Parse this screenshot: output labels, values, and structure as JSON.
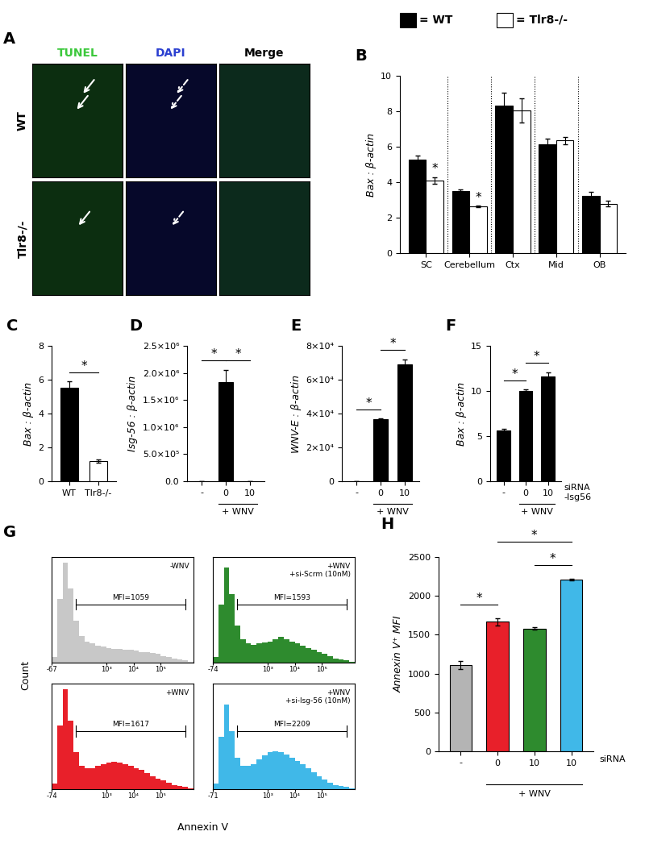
{
  "key": {
    "series": [
      {
        "name": "= WT",
        "color": "#000000"
      },
      {
        "name": "= Tlr8-/-",
        "color": "#ffffff"
      }
    ]
  },
  "chart_data": [
    {
      "type": "image_grid",
      "title": "A",
      "columns": [
        "TUNEL",
        "DAPI",
        "Merge"
      ],
      "colors": [
        "#3cc83c",
        "#2a3fd0",
        "#000000"
      ],
      "rows": [
        "WT",
        "Tlr8-/-"
      ]
    },
    {
      "type": "bar",
      "title": "B",
      "categories": [
        "SC",
        "Cerebellum",
        "Ctx",
        "Mid",
        "OB"
      ],
      "series": [
        {
          "name": "WT",
          "color": "#000000",
          "values": [
            5.3,
            3.5,
            8.35,
            6.15,
            3.25
          ],
          "errors": [
            0.2,
            0.1,
            0.7,
            0.3,
            0.2
          ]
        },
        {
          "name": "Tlr8-/-",
          "color": "#ffffff",
          "values": [
            4.1,
            2.65,
            8.05,
            6.35,
            2.8
          ],
          "errors": [
            0.2,
            0.05,
            0.7,
            0.2,
            0.15
          ]
        }
      ],
      "y_label": "Bax : β-actin",
      "ylim": [
        0,
        10
      ],
      "yticks": [
        0,
        2,
        4,
        6,
        8,
        10
      ],
      "annotations": [
        {
          "text": "*",
          "series": "Tlr8-/-",
          "category": 0
        },
        {
          "text": "*",
          "series": "Tlr8-/-",
          "category": 1
        }
      ]
    },
    {
      "type": "bar",
      "title": "C",
      "categories": [
        "WT",
        "Tlr8-/-"
      ],
      "values": [
        5.55,
        1.2
      ],
      "errors": [
        0.35,
        0.1
      ],
      "colors": [
        "#000000",
        "#ffffff"
      ],
      "y_label": "Bax : β-actin",
      "ylim": [
        0,
        8
      ],
      "yticks": [
        0,
        2,
        4,
        6,
        8
      ],
      "annotations": [
        {
          "text": "*",
          "between": [
            0,
            1
          ]
        }
      ]
    },
    {
      "type": "bar",
      "title": "D",
      "categories": [
        "-",
        "0",
        "10"
      ],
      "values": [
        0,
        1830000,
        0
      ],
      "errors": [
        0,
        230000,
        0
      ],
      "colors": [
        "#000000",
        "#000000",
        "#000000"
      ],
      "y_label": "Isg-56 : β-actin",
      "ylim": [
        0,
        2500000
      ],
      "yticks": [
        {
          "value": 0,
          "label": "0.0"
        },
        {
          "value": 500000,
          "label": "5.0×10⁵"
        },
        {
          "value": 1000000,
          "label": "1.0×10⁶"
        },
        {
          "value": 1500000,
          "label": "1.5×10⁶"
        },
        {
          "value": 2000000,
          "label": "2.0×10⁶"
        },
        {
          "value": 2500000,
          "label": "2.5×10⁶"
        }
      ],
      "annotations": [
        {
          "text": "*",
          "between": [
            0,
            1
          ]
        },
        {
          "text": "*",
          "between": [
            1,
            2
          ]
        },
        {
          "text": "+ WNV",
          "span": [
            1,
            2
          ]
        }
      ]
    },
    {
      "type": "bar",
      "title": "E",
      "categories": [
        "-",
        "0",
        "10"
      ],
      "values": [
        0,
        36500,
        69000
      ],
      "errors": [
        0,
        500,
        3000
      ],
      "colors": [
        "#000000",
        "#000000",
        "#000000"
      ],
      "y_label": "WNV-E : β-actin",
      "ylim": [
        0,
        80000
      ],
      "yticks": [
        {
          "value": 0,
          "label": "0"
        },
        {
          "value": 20000,
          "label": "2×10⁴"
        },
        {
          "value": 40000,
          "label": "4×10⁴"
        },
        {
          "value": 60000,
          "label": "6×10⁴"
        },
        {
          "value": 80000,
          "label": "8×10⁴"
        }
      ],
      "annotations": [
        {
          "text": "*",
          "between": [
            0,
            1
          ]
        },
        {
          "text": "*",
          "between": [
            1,
            2
          ]
        },
        {
          "text": "+ WNV",
          "span": [
            1,
            2
          ]
        }
      ]
    },
    {
      "type": "bar",
      "title": "F",
      "categories": [
        "-",
        "0",
        "10"
      ],
      "values": [
        5.6,
        10.0,
        11.6
      ],
      "errors": [
        0.2,
        0.15,
        0.5
      ],
      "colors": [
        "#000000",
        "#000000",
        "#000000"
      ],
      "y_label": "Bax : β-actin",
      "x_label": "siRNA\n-Isg56",
      "ylim": [
        0,
        15
      ],
      "yticks": [
        0,
        5,
        10,
        15
      ],
      "annotations": [
        {
          "text": "*",
          "between": [
            0,
            1
          ]
        },
        {
          "text": "*",
          "between": [
            1,
            2
          ]
        },
        {
          "text": "+ WNV",
          "span": [
            1,
            2
          ]
        }
      ]
    },
    {
      "type": "histogram",
      "title": "G",
      "x_label": "Annexin V",
      "y_label": "Count",
      "tick_labels": "x",
      "bins": [
        0,
        0.2,
        0.4,
        0.6,
        0.8,
        1.0,
        1.2,
        1.4,
        1.6,
        1.8,
        2.0,
        2.2,
        2.4,
        2.6,
        2.8,
        3.0,
        3.2,
        3.4,
        3.6,
        3.8,
        4.0,
        4.2,
        4.4,
        4.6,
        4.8,
        5.0,
        5.2
      ],
      "xlim": [
        0,
        5.2
      ],
      "ylim": [
        0,
        100
      ],
      "subplots": [
        {
          "name": "-WNV",
          "color": "#c8c8c8",
          "gate": [
            0.9,
            4.9
          ],
          "gate_label": "MFI=1059",
          "counts": [
            5,
            60,
            95,
            70,
            40,
            25,
            20,
            18,
            16,
            15,
            14,
            13,
            13,
            12,
            12,
            11,
            10,
            10,
            9,
            8,
            6,
            5,
            4,
            3,
            2,
            1
          ],
          "xticks": [
            {
              "value": 0,
              "label": "-67"
            },
            {
              "value": 2,
              "label": "10³"
            },
            {
              "value": 3,
              "label": "10⁴"
            },
            {
              "value": 4,
              "label": "10⁵"
            }
          ]
        },
        {
          "name": "+WNV\n+si-Scrm (10nM)",
          "color": "#2e8b2e",
          "gate": [
            0.9,
            4.9
          ],
          "gate_label": "MFI=1593",
          "counts": [
            5,
            55,
            90,
            65,
            35,
            22,
            18,
            17,
            18,
            19,
            20,
            22,
            24,
            22,
            20,
            18,
            16,
            14,
            12,
            10,
            8,
            6,
            4,
            3,
            2,
            1
          ],
          "xticks": [
            {
              "value": 0,
              "label": "-74"
            },
            {
              "value": 2,
              "label": "10³"
            },
            {
              "value": 3,
              "label": "10⁴"
            },
            {
              "value": 4,
              "label": "10⁵"
            }
          ]
        },
        {
          "name": "+WNV",
          "color": "#e8202a",
          "gate": [
            0.9,
            4.9
          ],
          "gate_label": "MFI=1617",
          "counts": [
            5,
            60,
            95,
            65,
            35,
            22,
            20,
            20,
            22,
            24,
            25,
            26,
            25,
            24,
            22,
            20,
            18,
            15,
            12,
            10,
            8,
            6,
            4,
            3,
            2,
            1
          ],
          "xticks": [
            {
              "value": 0,
              "label": "-74"
            },
            {
              "value": 2,
              "label": "10³"
            },
            {
              "value": 3,
              "label": "10⁴"
            },
            {
              "value": 4,
              "label": "10⁵"
            }
          ]
        },
        {
          "name": "+WNV\n+si-Isg-56 (10nM)",
          "color": "#40b8e8",
          "gate": [
            0.9,
            4.9
          ],
          "gate_label": "MFI=2209",
          "counts": [
            5,
            50,
            80,
            55,
            30,
            22,
            22,
            24,
            28,
            32,
            35,
            36,
            35,
            33,
            30,
            27,
            24,
            20,
            16,
            12,
            9,
            6,
            4,
            3,
            2,
            1
          ],
          "xticks": [
            {
              "value": 0,
              "label": "-71"
            },
            {
              "value": 2,
              "label": "10³"
            },
            {
              "value": 3,
              "label": "10⁴"
            },
            {
              "value": 4,
              "label": "10⁵"
            }
          ]
        }
      ]
    },
    {
      "type": "bar",
      "title": "H",
      "categories": [
        "-",
        "0",
        "10",
        "10"
      ],
      "values": [
        1110,
        1665,
        1580,
        2210
      ],
      "errors": [
        50,
        50,
        15,
        10
      ],
      "colors": [
        "#b4b4b4",
        "#e8202a",
        "#2e8b2e",
        "#40b8e8"
      ],
      "y_label": "Annexin V⁺ MFI",
      "x_label": "siRNA",
      "ylim": [
        0,
        2500
      ],
      "yticks": [
        0,
        500,
        1000,
        1500,
        2000,
        2500
      ],
      "annotations": [
        {
          "text": "*",
          "between": [
            0,
            1
          ]
        },
        {
          "text": "*",
          "between": [
            1,
            3
          ]
        },
        {
          "text": "*",
          "between": [
            2,
            3
          ]
        },
        {
          "text": "+ WNV",
          "span": [
            1,
            3
          ]
        }
      ]
    }
  ]
}
